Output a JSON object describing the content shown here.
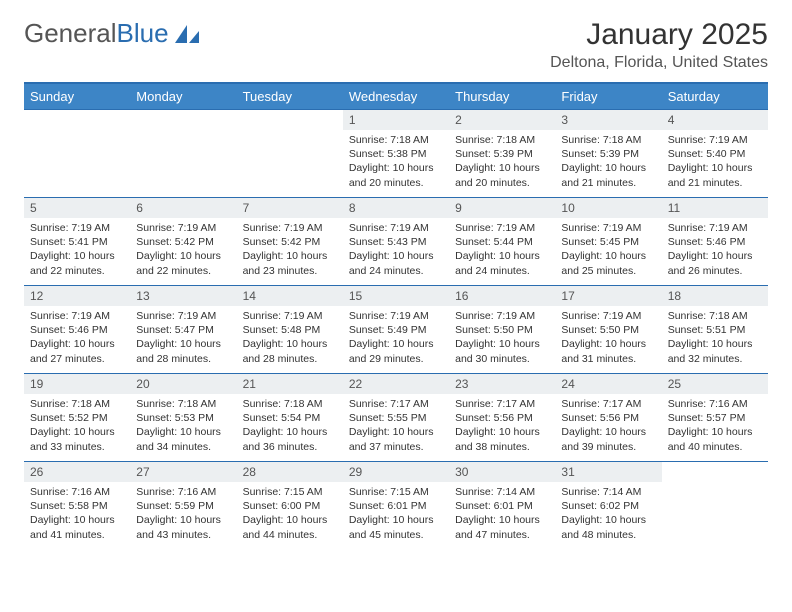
{
  "logo": {
    "text_gray": "General",
    "text_blue": "Blue"
  },
  "header": {
    "month": "January 2025",
    "location": "Deltona, Florida, United States"
  },
  "colors": {
    "header_bg": "#3d85c6",
    "header_border": "#2a6db0",
    "daynum_bg": "#eceff1",
    "text": "#333333"
  },
  "weekdays": [
    "Sunday",
    "Monday",
    "Tuesday",
    "Wednesday",
    "Thursday",
    "Friday",
    "Saturday"
  ],
  "weeks": [
    [
      {
        "n": "",
        "lines": []
      },
      {
        "n": "",
        "lines": []
      },
      {
        "n": "",
        "lines": []
      },
      {
        "n": "1",
        "lines": [
          "Sunrise: 7:18 AM",
          "Sunset: 5:38 PM",
          "Daylight: 10 hours and 20 minutes."
        ]
      },
      {
        "n": "2",
        "lines": [
          "Sunrise: 7:18 AM",
          "Sunset: 5:39 PM",
          "Daylight: 10 hours and 20 minutes."
        ]
      },
      {
        "n": "3",
        "lines": [
          "Sunrise: 7:18 AM",
          "Sunset: 5:39 PM",
          "Daylight: 10 hours and 21 minutes."
        ]
      },
      {
        "n": "4",
        "lines": [
          "Sunrise: 7:19 AM",
          "Sunset: 5:40 PM",
          "Daylight: 10 hours and 21 minutes."
        ]
      }
    ],
    [
      {
        "n": "5",
        "lines": [
          "Sunrise: 7:19 AM",
          "Sunset: 5:41 PM",
          "Daylight: 10 hours and 22 minutes."
        ]
      },
      {
        "n": "6",
        "lines": [
          "Sunrise: 7:19 AM",
          "Sunset: 5:42 PM",
          "Daylight: 10 hours and 22 minutes."
        ]
      },
      {
        "n": "7",
        "lines": [
          "Sunrise: 7:19 AM",
          "Sunset: 5:42 PM",
          "Daylight: 10 hours and 23 minutes."
        ]
      },
      {
        "n": "8",
        "lines": [
          "Sunrise: 7:19 AM",
          "Sunset: 5:43 PM",
          "Daylight: 10 hours and 24 minutes."
        ]
      },
      {
        "n": "9",
        "lines": [
          "Sunrise: 7:19 AM",
          "Sunset: 5:44 PM",
          "Daylight: 10 hours and 24 minutes."
        ]
      },
      {
        "n": "10",
        "lines": [
          "Sunrise: 7:19 AM",
          "Sunset: 5:45 PM",
          "Daylight: 10 hours and 25 minutes."
        ]
      },
      {
        "n": "11",
        "lines": [
          "Sunrise: 7:19 AM",
          "Sunset: 5:46 PM",
          "Daylight: 10 hours and 26 minutes."
        ]
      }
    ],
    [
      {
        "n": "12",
        "lines": [
          "Sunrise: 7:19 AM",
          "Sunset: 5:46 PM",
          "Daylight: 10 hours and 27 minutes."
        ]
      },
      {
        "n": "13",
        "lines": [
          "Sunrise: 7:19 AM",
          "Sunset: 5:47 PM",
          "Daylight: 10 hours and 28 minutes."
        ]
      },
      {
        "n": "14",
        "lines": [
          "Sunrise: 7:19 AM",
          "Sunset: 5:48 PM",
          "Daylight: 10 hours and 28 minutes."
        ]
      },
      {
        "n": "15",
        "lines": [
          "Sunrise: 7:19 AM",
          "Sunset: 5:49 PM",
          "Daylight: 10 hours and 29 minutes."
        ]
      },
      {
        "n": "16",
        "lines": [
          "Sunrise: 7:19 AM",
          "Sunset: 5:50 PM",
          "Daylight: 10 hours and 30 minutes."
        ]
      },
      {
        "n": "17",
        "lines": [
          "Sunrise: 7:19 AM",
          "Sunset: 5:50 PM",
          "Daylight: 10 hours and 31 minutes."
        ]
      },
      {
        "n": "18",
        "lines": [
          "Sunrise: 7:18 AM",
          "Sunset: 5:51 PM",
          "Daylight: 10 hours and 32 minutes."
        ]
      }
    ],
    [
      {
        "n": "19",
        "lines": [
          "Sunrise: 7:18 AM",
          "Sunset: 5:52 PM",
          "Daylight: 10 hours and 33 minutes."
        ]
      },
      {
        "n": "20",
        "lines": [
          "Sunrise: 7:18 AM",
          "Sunset: 5:53 PM",
          "Daylight: 10 hours and 34 minutes."
        ]
      },
      {
        "n": "21",
        "lines": [
          "Sunrise: 7:18 AM",
          "Sunset: 5:54 PM",
          "Daylight: 10 hours and 36 minutes."
        ]
      },
      {
        "n": "22",
        "lines": [
          "Sunrise: 7:17 AM",
          "Sunset: 5:55 PM",
          "Daylight: 10 hours and 37 minutes."
        ]
      },
      {
        "n": "23",
        "lines": [
          "Sunrise: 7:17 AM",
          "Sunset: 5:56 PM",
          "Daylight: 10 hours and 38 minutes."
        ]
      },
      {
        "n": "24",
        "lines": [
          "Sunrise: 7:17 AM",
          "Sunset: 5:56 PM",
          "Daylight: 10 hours and 39 minutes."
        ]
      },
      {
        "n": "25",
        "lines": [
          "Sunrise: 7:16 AM",
          "Sunset: 5:57 PM",
          "Daylight: 10 hours and 40 minutes."
        ]
      }
    ],
    [
      {
        "n": "26",
        "lines": [
          "Sunrise: 7:16 AM",
          "Sunset: 5:58 PM",
          "Daylight: 10 hours and 41 minutes."
        ]
      },
      {
        "n": "27",
        "lines": [
          "Sunrise: 7:16 AM",
          "Sunset: 5:59 PM",
          "Daylight: 10 hours and 43 minutes."
        ]
      },
      {
        "n": "28",
        "lines": [
          "Sunrise: 7:15 AM",
          "Sunset: 6:00 PM",
          "Daylight: 10 hours and 44 minutes."
        ]
      },
      {
        "n": "29",
        "lines": [
          "Sunrise: 7:15 AM",
          "Sunset: 6:01 PM",
          "Daylight: 10 hours and 45 minutes."
        ]
      },
      {
        "n": "30",
        "lines": [
          "Sunrise: 7:14 AM",
          "Sunset: 6:01 PM",
          "Daylight: 10 hours and 47 minutes."
        ]
      },
      {
        "n": "31",
        "lines": [
          "Sunrise: 7:14 AM",
          "Sunset: 6:02 PM",
          "Daylight: 10 hours and 48 minutes."
        ]
      },
      {
        "n": "",
        "lines": []
      }
    ]
  ]
}
